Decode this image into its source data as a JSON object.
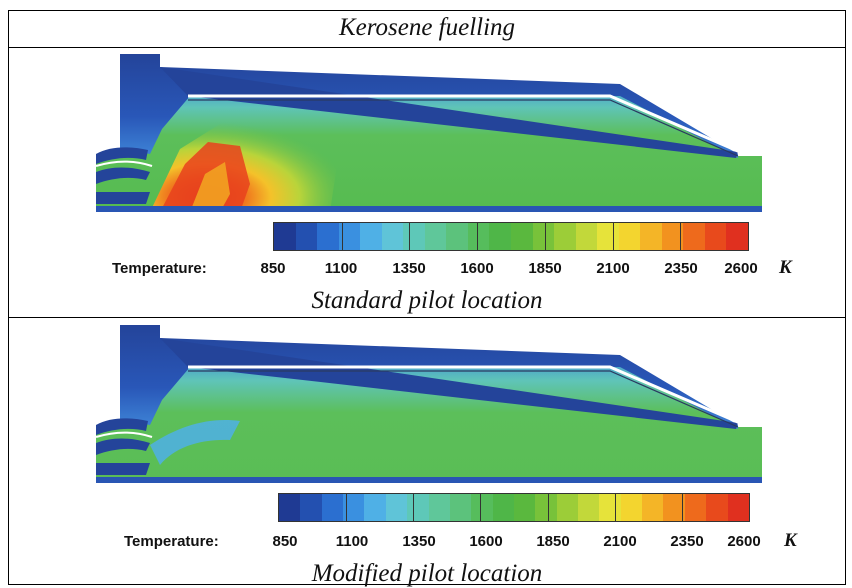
{
  "header_title": "Kerosene fuelling",
  "panels": [
    {
      "caption": "Standard pilot location",
      "colorbar": {
        "label": "Temperature:",
        "unit": "K",
        "ticks": [
          "850",
          "1100",
          "1350",
          "1600",
          "1850",
          "2100",
          "2350",
          "2600"
        ],
        "range": [
          850,
          2600
        ]
      }
    },
    {
      "caption": "Modified pilot location",
      "colorbar": {
        "label": "Temperature:",
        "unit": "K",
        "ticks": [
          "850",
          "1100",
          "1350",
          "1600",
          "1850",
          "2100",
          "2350",
          "2600"
        ],
        "range": [
          850,
          2600
        ]
      }
    }
  ],
  "colormap": [
    "#1f3a93",
    "#2350b0",
    "#2b6fd0",
    "#3a90e0",
    "#4fb0e6",
    "#5fc4d8",
    "#5ec8b8",
    "#5fc79a",
    "#5cc27c",
    "#56bd5c",
    "#4fb648",
    "#5ab83e",
    "#78c23a",
    "#9ccd38",
    "#c2d83a",
    "#e6e33a",
    "#f3d52f",
    "#f4b527",
    "#f2921f",
    "#ee6a1c",
    "#e84a1c",
    "#e0301f"
  ],
  "colors": {
    "cold": "#24449a",
    "mid_green": "#5bbf55",
    "hot_red": "#e2391d",
    "hot_yellow": "#f2c92a"
  }
}
